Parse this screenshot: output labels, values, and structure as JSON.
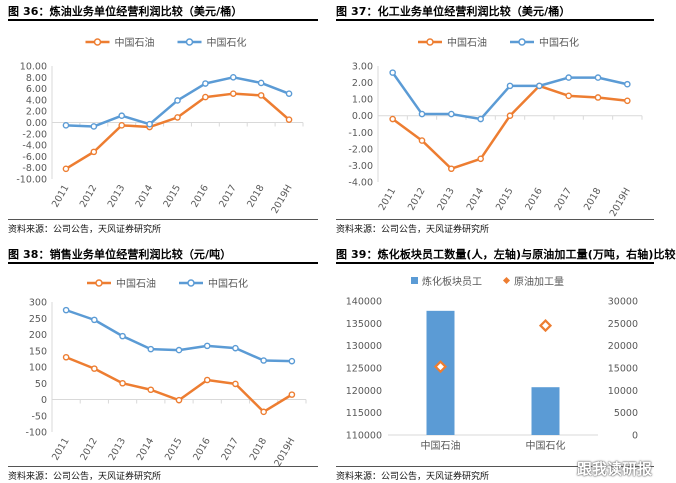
{
  "watermark": "跟我读研报",
  "colors": {
    "petro": "#ED7D31",
    "sinopec": "#5B9BD5",
    "axis": "#D9D9D9",
    "text": "#595959"
  },
  "chart_data": [
    {
      "id": "fig36",
      "type": "line",
      "title": "图 36：炼油业务单位经营利润比较（美元/桶）",
      "source": "资料来源：公司公告，天风证券研究所",
      "categories": [
        "2011",
        "2012",
        "2013",
        "2014",
        "2015",
        "2016",
        "2017",
        "2018",
        "2019H"
      ],
      "ylim": [
        -10,
        10
      ],
      "yticks": [
        "-10.00",
        "-8.00",
        "-6.00",
        "-4.00",
        "-2.00",
        "0.00",
        "2.00",
        "4.00",
        "6.00",
        "8.00",
        "10.00"
      ],
      "ytick_values": [
        -10,
        -8,
        -6,
        -4,
        -2,
        0,
        2,
        4,
        6,
        8,
        10
      ],
      "legend_position": "top",
      "series": [
        {
          "name": "中国石油",
          "color": "#ED7D31",
          "values": [
            -8.2,
            -5.2,
            -0.5,
            -0.8,
            0.9,
            4.5,
            5.1,
            4.8,
            0.5
          ]
        },
        {
          "name": "中国石化",
          "color": "#5B9BD5",
          "values": [
            -0.5,
            -0.7,
            1.2,
            -0.3,
            3.9,
            6.9,
            8.0,
            7.0,
            5.1
          ]
        }
      ]
    },
    {
      "id": "fig37",
      "type": "line",
      "title": "图 37：化工业务单位经营利润比较（美元/桶）",
      "source": "资料来源：公司公告，天风证券研究所",
      "categories": [
        "2011",
        "2012",
        "2013",
        "2014",
        "2015",
        "2016",
        "2017",
        "2018",
        "2019H"
      ],
      "ylim": [
        -4,
        3
      ],
      "yticks": [
        "-4.00",
        "-3.00",
        "-2.00",
        "-1.00",
        "0.00",
        "1.00",
        "2.00",
        "3.00"
      ],
      "ytick_values": [
        -4,
        -3,
        -2,
        -1,
        0,
        1,
        2,
        3
      ],
      "legend_position": "top",
      "series": [
        {
          "name": "中国石油",
          "color": "#ED7D31",
          "values": [
            -0.2,
            -1.5,
            -3.2,
            -2.6,
            0.0,
            1.8,
            1.2,
            1.1,
            0.9
          ]
        },
        {
          "name": "中国石化",
          "color": "#5B9BD5",
          "values": [
            2.6,
            0.1,
            0.1,
            -0.2,
            1.8,
            1.8,
            2.3,
            2.3,
            1.9
          ]
        }
      ]
    },
    {
      "id": "fig38",
      "type": "line",
      "title": "图 38：销售业务单位经营利润比较（元/吨）",
      "source": "资料来源：公司公告，天风证券研究所",
      "categories": [
        "2011",
        "2012",
        "2013",
        "2014",
        "2015",
        "2016",
        "2017",
        "2018",
        "2019H"
      ],
      "ylim": [
        -100,
        300
      ],
      "yticks": [
        "-100",
        "-50",
        "0",
        "50",
        "100",
        "150",
        "200",
        "250",
        "300"
      ],
      "ytick_values": [
        -100,
        -50,
        0,
        50,
        100,
        150,
        200,
        250,
        300
      ],
      "legend_position": "top",
      "series": [
        {
          "name": "中国石油",
          "color": "#ED7D31",
          "values": [
            130,
            95,
            50,
            30,
            -2,
            60,
            48,
            -38,
            15
          ]
        },
        {
          "name": "中国石化",
          "color": "#5B9BD5",
          "values": [
            275,
            245,
            195,
            155,
            152,
            165,
            158,
            120,
            118
          ]
        }
      ]
    },
    {
      "id": "fig39",
      "type": "bar",
      "title": "图 39：炼化板块员工数量(人，左轴)与原油加工量(万吨，右轴)比较",
      "source": "资料来源：公司公告，天风证券研究所",
      "categories": [
        "中国石油",
        "中国石化"
      ],
      "ylim": [
        110000,
        140000
      ],
      "yticks": [
        "110000",
        "115000",
        "120000",
        "125000",
        "130000",
        "135000",
        "140000"
      ],
      "ytick_values": [
        110000,
        115000,
        120000,
        125000,
        130000,
        135000,
        140000
      ],
      "y2lim": [
        0,
        30000
      ],
      "y2ticks": [
        "0",
        "5000",
        "10000",
        "15000",
        "20000",
        "25000",
        "30000"
      ],
      "y2tick_values": [
        0,
        5000,
        10000,
        15000,
        20000,
        25000,
        30000
      ],
      "legend_position": "top",
      "series": [
        {
          "name": "炼化板块员工",
          "kind": "bar",
          "axis": "left",
          "color": "#5B9BD5",
          "values": [
            137800,
            120700
          ]
        },
        {
          "name": "原油加工量",
          "kind": "marker",
          "axis": "right",
          "color": "#ED7D31",
          "values": [
            15300,
            24500
          ]
        }
      ]
    }
  ]
}
